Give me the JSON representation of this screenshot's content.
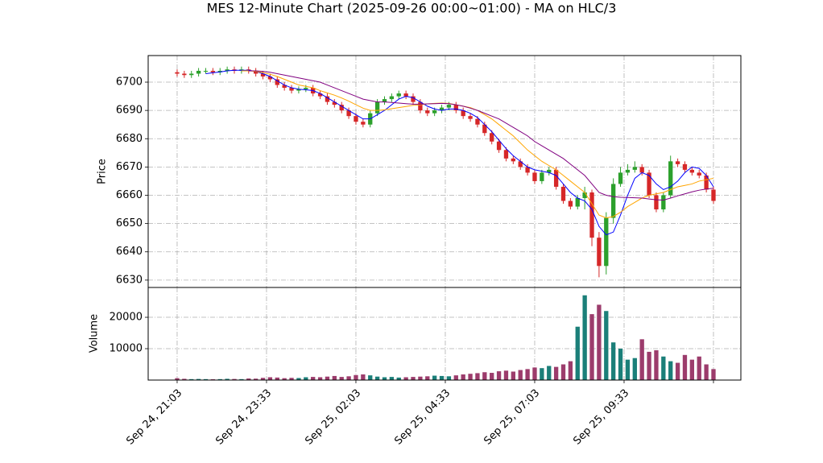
{
  "chart_data": {
    "type": "candlestick",
    "title": "MES 12-Minute Chart (2025-09-26 00:00~01:00) - MA on HLC/3",
    "ylabel": "Price",
    "up_color": "#2ca02c",
    "down_color": "#d62728",
    "xlim": [
      -4.05,
      78.83
    ],
    "xticks": [
      {
        "value": 0,
        "label": "Sep 24, 21:03"
      },
      {
        "value": 12.5,
        "label": "Sep 24, 23:33"
      },
      {
        "value": 25,
        "label": "Sep 25, 02:03"
      },
      {
        "value": 37.5,
        "label": "Sep 25, 04:33"
      },
      {
        "value": 50,
        "label": "Sep 25, 07:03"
      },
      {
        "value": 62.5,
        "label": "Sep 25, 09:33"
      },
      {
        "value": 75,
        "label": null
      }
    ],
    "ylim": [
      6627.4,
      6709.4
    ],
    "yticks": [
      6630,
      6640,
      6650,
      6660,
      6670,
      6680,
      6690,
      6700
    ],
    "grid": true,
    "open": [
      6703.5,
      6703,
      6702.5,
      6703,
      6704,
      6704,
      6703.5,
      6704,
      6704.5,
      6704,
      6704.5,
      6704,
      6703,
      6702,
      6701,
      6699,
      6698,
      6697,
      6697.5,
      6698,
      6696,
      6695,
      6693,
      6692,
      6690,
      6688,
      6686,
      6685,
      6689,
      6693,
      6694,
      6695,
      6696,
      6695,
      6693,
      6690,
      6689,
      6690,
      6691,
      6692,
      6690,
      6688,
      6687,
      6685,
      6682,
      6679,
      6676,
      6673,
      6672,
      6670,
      6668,
      6665,
      6668,
      6669,
      6663,
      6658,
      6656,
      6659,
      6661,
      6645,
      6635,
      6652,
      6664,
      6668,
      6669,
      6670,
      6668,
      6660,
      6655,
      6660,
      6672,
      6671,
      6669,
      6668,
      6667,
      6662
    ],
    "high": [
      6704.5,
      6704,
      6704,
      6705,
      6705,
      6705,
      6705,
      6705.5,
      6705.5,
      6705.5,
      6705.5,
      6705,
      6704,
      6703,
      6702,
      6700,
      6699,
      6698.5,
      6699,
      6699,
      6697,
      6696,
      6694,
      6693,
      6691,
      6689,
      6687,
      6690,
      6694,
      6695,
      6696,
      6697,
      6697,
      6696,
      6694,
      6691,
      6691,
      6692,
      6693,
      6693,
      6691,
      6689,
      6688,
      6686,
      6683,
      6680,
      6677,
      6674,
      6673,
      6671,
      6669,
      6669,
      6670,
      6670,
      6664,
      6659,
      6660,
      6663,
      6662,
      6647,
      6654,
      6666,
      6670,
      6671,
      6672,
      6671,
      6669,
      6661,
      6661,
      6674,
      6673,
      6672,
      6670,
      6669,
      6668,
      6663
    ],
    "low": [
      6702,
      6701.5,
      6701.5,
      6702,
      6703,
      6702.5,
      6702.5,
      6703,
      6703,
      6703,
      6703,
      6702,
      6701,
      6700,
      6698,
      6697,
      6696,
      6696,
      6696.5,
      6695,
      6694,
      6692,
      6691,
      6689,
      6687,
      6685,
      6684,
      6684,
      6688,
      6692,
      6693,
      6694,
      6694,
      6692,
      6689,
      6688,
      6688,
      6689,
      6690,
      6689,
      6687,
      6686,
      6684,
      6681,
      6678,
      6675,
      6672,
      6671,
      6669,
      6667,
      6664,
      6664,
      6667,
      6662,
      6657,
      6655,
      6655,
      6655,
      6642,
      6631,
      6632,
      6650,
      6663,
      6667,
      6668,
      6667,
      6659,
      6654,
      6654,
      6659,
      6670,
      6668,
      6667,
      6666,
      6661,
      6657
    ],
    "close": [
      6703,
      6702.5,
      6703,
      6704,
      6704,
      6703.5,
      6704,
      6704.5,
      6704,
      6704.5,
      6704,
      6703,
      6702,
      6701,
      6699,
      6698,
      6697,
      6697.5,
      6698,
      6696,
      6695,
      6693,
      6692,
      6690,
      6688,
      6686,
      6685,
      6689,
      6693,
      6694,
      6695,
      6696,
      6695,
      6693,
      6690,
      6689,
      6690,
      6691,
      6692,
      6690,
      6688,
      6687,
      6685,
      6682,
      6679,
      6676,
      6673,
      6672,
      6670,
      6668,
      6665,
      6668,
      6669,
      6663,
      6658,
      6656,
      6659,
      6661,
      6645,
      6635,
      6652,
      6664,
      6668,
      6669,
      6670,
      6668,
      6660,
      6655,
      6660,
      6672,
      6671,
      6669,
      6668,
      6667,
      6662,
      6658
    ],
    "series": [
      {
        "color": "#0000ff",
        "values": [
          null,
          null,
          null,
          null,
          6703,
          6703.3,
          6703.6,
          6704,
          6704.2,
          6704.2,
          6704.2,
          6703.8,
          6703,
          6702,
          6700.5,
          6699,
          6698,
          6697.5,
          6697.3,
          6697,
          6696,
          6694.5,
          6693,
          6691.5,
          6690,
          6688.5,
          6687,
          6687,
          6688.5,
          6690,
          6692,
          6694,
          6695,
          6694.5,
          6693,
          6691.5,
          6690.5,
          6690,
          6690.5,
          6690.5,
          6690,
          6689,
          6687.5,
          6685,
          6682.5,
          6679.5,
          6676.5,
          6674,
          6672,
          6670,
          6669,
          6668.5,
          6668,
          6667,
          6664,
          6661,
          6659,
          6658,
          6655,
          6649,
          6646,
          6647,
          6653,
          6660,
          6666,
          6668,
          6667,
          6664,
          6662,
          6663,
          6665,
          6668,
          6670,
          6669.5,
          6667,
          6663
        ]
      },
      {
        "color": "#ffa500",
        "values": [
          null,
          null,
          null,
          null,
          null,
          null,
          null,
          null,
          null,
          6704,
          6704,
          6703.8,
          6703.4,
          6702.8,
          6702,
          6701,
          6700,
          6699,
          6698.5,
          6698,
          6697,
          6696.2,
          6695.4,
          6694.4,
          6693.3,
          6692,
          6690.8,
          6690,
          6690,
          6690.2,
          6690.6,
          6691,
          6691.4,
          6691.8,
          6692,
          6692.3,
          6692.5,
          6692.6,
          6692.5,
          6692,
          6691.5,
          6691,
          6690,
          6688.5,
          6687,
          6685,
          6683,
          6681,
          6678.5,
          6676,
          6674,
          6672,
          6670.5,
          6669,
          6667,
          6665,
          6663,
          6661,
          6657,
          6653,
          6652,
          6652.5,
          6654,
          6656,
          6657.5,
          6659,
          6660,
          6660.5,
          6661,
          6662,
          6663,
          6663.5,
          6664,
          6665,
          6665.5,
          6666
        ]
      },
      {
        "color": "#800080",
        "values": [
          null,
          null,
          null,
          null,
          null,
          null,
          null,
          null,
          null,
          null,
          6704,
          6704,
          6703.8,
          6703.5,
          6703,
          6702.5,
          6702,
          6701.5,
          6701,
          6700.5,
          6700,
          6699,
          6698,
          6697,
          6696,
          6695,
          6694,
          6693.5,
          6693,
          6693,
          6692.8,
          6692.6,
          6692.4,
          6692.2,
          6692.2,
          6692.3,
          6692.4,
          6692.5,
          6692.4,
          6692,
          6691.5,
          6690.8,
          6690,
          6689,
          6688,
          6687,
          6685.5,
          6684,
          6682.5,
          6681,
          6679,
          6677.5,
          6676,
          6674.5,
          6673,
          6671,
          6669,
          6667,
          6664,
          6661,
          6660,
          6659.5,
          6659.3,
          6659.2,
          6659.1,
          6659,
          6658.7,
          6658.4,
          6658.3,
          6659,
          6659.8,
          6660.5,
          6661.2,
          6661.8,
          6662.2,
          6662.5
        ]
      }
    ],
    "volume": {
      "ylabel": "Volume",
      "up_color": "#1b7f79",
      "down_color": "#9c3c6c",
      "ylim": [
        0,
        29500
      ],
      "yticks": [
        10000,
        20000
      ],
      "values": [
        600,
        400,
        300,
        350,
        300,
        250,
        300,
        400,
        350,
        300,
        500,
        450,
        700,
        900,
        800,
        600,
        700,
        650,
        900,
        1000,
        900,
        1100,
        1300,
        1000,
        1200,
        1600,
        1800,
        1500,
        1100,
        900,
        1000,
        800,
        900,
        1000,
        1100,
        1200,
        1400,
        1300,
        1200,
        1500,
        1800,
        2000,
        2200,
        2500,
        2300,
        2800,
        3000,
        2700,
        3200,
        3500,
        4000,
        3800,
        4500,
        4200,
        5000,
        6000,
        17000,
        27000,
        21000,
        24000,
        22000,
        12000,
        10000,
        6500,
        7000,
        13000,
        9000,
        9500,
        7500,
        6000,
        5500,
        8000,
        6500,
        7500,
        5000,
        3500
      ]
    }
  }
}
